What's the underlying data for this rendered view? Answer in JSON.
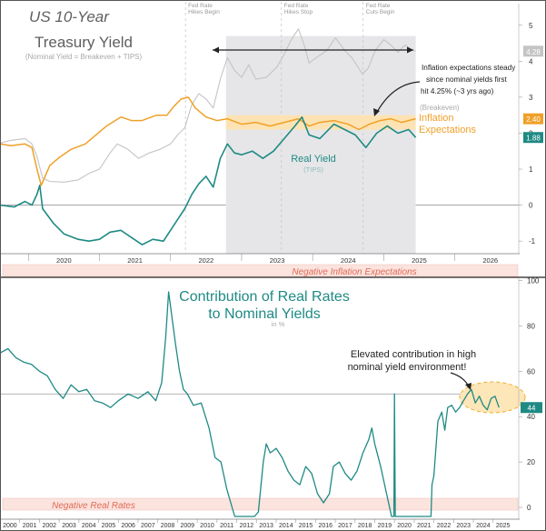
{
  "colors": {
    "nominal": "#c4c4c4",
    "nominal_band": "#dddddf",
    "breakeven": "#f0a028",
    "real": "#1f8a84",
    "contribution": "#1f8a84",
    "negative_band": "#fbe3de",
    "negative_text": "#e06a55",
    "ellipse_fill": "#fde6b8",
    "ellipse_stroke": "#f0b030",
    "axis_text": "#333333",
    "event_text": "#999999",
    "title_gray": "#5f5f5f"
  },
  "chart_data": [
    {
      "type": "line",
      "title": "US 10-Year Treasury Yield",
      "subtitle": "(Nominal Yield = Breakeven + TIPS)",
      "xlim": [
        2019.6,
        2026.9
      ],
      "ylim": [
        -1.35,
        5.5
      ],
      "x_ticks": [
        "2020",
        "2021",
        "2022",
        "2023",
        "2024",
        "2025",
        "2026"
      ],
      "y_ticks": [
        "5",
        "4",
        "3",
        "2",
        "1",
        "0",
        "-1"
      ],
      "events": [
        {
          "x": 2022.21,
          "lines": [
            "Fed Rate",
            "Hikes Begin"
          ]
        },
        {
          "x": 2023.56,
          "lines": [
            "Fed Rate",
            "Hikes Stop"
          ]
        },
        {
          "x": 2024.71,
          "lines": [
            "Fed Rate",
            "Cuts Begin"
          ]
        }
      ],
      "series": [
        {
          "name": "Nominal Yield",
          "last_label": "4.28",
          "points": [
            [
              2019.6,
              1.72
            ],
            [
              2019.75,
              1.8
            ],
            [
              2019.95,
              1.85
            ],
            [
              2020.05,
              1.7
            ],
            [
              2020.12,
              1.35
            ],
            [
              2020.2,
              0.75
            ],
            [
              2020.3,
              0.66
            ],
            [
              2020.5,
              0.64
            ],
            [
              2020.7,
              0.7
            ],
            [
              2020.85,
              0.88
            ],
            [
              2021.0,
              1.0
            ],
            [
              2021.15,
              1.45
            ],
            [
              2021.25,
              1.7
            ],
            [
              2021.4,
              1.55
            ],
            [
              2021.55,
              1.3
            ],
            [
              2021.7,
              1.45
            ],
            [
              2021.85,
              1.55
            ],
            [
              2022.0,
              1.7
            ],
            [
              2022.1,
              1.95
            ],
            [
              2022.2,
              2.15
            ],
            [
              2022.3,
              2.8
            ],
            [
              2022.4,
              3.1
            ],
            [
              2022.5,
              2.95
            ],
            [
              2022.6,
              2.7
            ],
            [
              2022.7,
              3.5
            ],
            [
              2022.8,
              4.1
            ],
            [
              2022.9,
              3.75
            ],
            [
              2023.0,
              3.55
            ],
            [
              2023.1,
              3.9
            ],
            [
              2023.2,
              3.5
            ],
            [
              2023.35,
              3.55
            ],
            [
              2023.5,
              3.85
            ],
            [
              2023.6,
              4.2
            ],
            [
              2023.7,
              4.6
            ],
            [
              2023.8,
              4.9
            ],
            [
              2023.88,
              4.45
            ],
            [
              2023.95,
              3.95
            ],
            [
              2024.05,
              4.1
            ],
            [
              2024.2,
              4.3
            ],
            [
              2024.32,
              4.65
            ],
            [
              2024.45,
              4.3
            ],
            [
              2024.55,
              4.1
            ],
            [
              2024.7,
              3.65
            ],
            [
              2024.78,
              3.8
            ],
            [
              2024.88,
              4.3
            ],
            [
              2025.0,
              4.6
            ],
            [
              2025.1,
              4.45
            ],
            [
              2025.2,
              4.25
            ],
            [
              2025.3,
              4.45
            ],
            [
              2025.42,
              4.3
            ],
            [
              2025.45,
              4.28
            ]
          ]
        },
        {
          "name": "Inflation Expectations",
          "label_lines": [
            "(Breakeven)",
            "Inflation",
            "Expectations"
          ],
          "last_label": "2.40",
          "points": [
            [
              2019.6,
              1.7
            ],
            [
              2019.75,
              1.65
            ],
            [
              2019.95,
              1.7
            ],
            [
              2020.05,
              1.6
            ],
            [
              2020.12,
              1.0
            ],
            [
              2020.18,
              0.55
            ],
            [
              2020.3,
              1.1
            ],
            [
              2020.45,
              1.35
            ],
            [
              2020.6,
              1.55
            ],
            [
              2020.8,
              1.7
            ],
            [
              2020.95,
              1.95
            ],
            [
              2021.1,
              2.2
            ],
            [
              2021.3,
              2.45
            ],
            [
              2021.45,
              2.35
            ],
            [
              2021.6,
              2.35
            ],
            [
              2021.8,
              2.5
            ],
            [
              2021.95,
              2.5
            ],
            [
              2022.05,
              2.75
            ],
            [
              2022.15,
              2.95
            ],
            [
              2022.25,
              3.0
            ],
            [
              2022.35,
              2.7
            ],
            [
              2022.5,
              2.45
            ],
            [
              2022.65,
              2.35
            ],
            [
              2022.8,
              2.4
            ],
            [
              2023.0,
              2.25
            ],
            [
              2023.2,
              2.3
            ],
            [
              2023.4,
              2.2
            ],
            [
              2023.6,
              2.3
            ],
            [
              2023.8,
              2.4
            ],
            [
              2023.95,
              2.2
            ],
            [
              2024.1,
              2.3
            ],
            [
              2024.3,
              2.35
            ],
            [
              2024.5,
              2.25
            ],
            [
              2024.65,
              2.1
            ],
            [
              2024.8,
              2.25
            ],
            [
              2024.95,
              2.35
            ],
            [
              2025.1,
              2.4
            ],
            [
              2025.25,
              2.3
            ],
            [
              2025.45,
              2.4
            ]
          ]
        },
        {
          "name": "Real Yield",
          "sublabel": "(TIPS)",
          "last_label": "1.88",
          "points": [
            [
              2019.6,
              0.0
            ],
            [
              2019.8,
              -0.05
            ],
            [
              2019.95,
              0.1
            ],
            [
              2020.05,
              0.0
            ],
            [
              2020.12,
              0.3
            ],
            [
              2020.16,
              0.55
            ],
            [
              2020.2,
              -0.1
            ],
            [
              2020.35,
              -0.5
            ],
            [
              2020.5,
              -0.8
            ],
            [
              2020.7,
              -0.95
            ],
            [
              2020.85,
              -1.0
            ],
            [
              2021.0,
              -0.95
            ],
            [
              2021.15,
              -0.75
            ],
            [
              2021.3,
              -0.7
            ],
            [
              2021.45,
              -0.9
            ],
            [
              2021.6,
              -1.1
            ],
            [
              2021.75,
              -0.95
            ],
            [
              2021.9,
              -1.0
            ],
            [
              2022.0,
              -0.7
            ],
            [
              2022.1,
              -0.4
            ],
            [
              2022.2,
              -0.1
            ],
            [
              2022.3,
              0.3
            ],
            [
              2022.4,
              0.6
            ],
            [
              2022.5,
              0.8
            ],
            [
              2022.6,
              0.5
            ],
            [
              2022.7,
              1.3
            ],
            [
              2022.8,
              1.7
            ],
            [
              2022.9,
              1.45
            ],
            [
              2023.0,
              1.4
            ],
            [
              2023.15,
              1.5
            ],
            [
              2023.3,
              1.3
            ],
            [
              2023.45,
              1.5
            ],
            [
              2023.6,
              1.85
            ],
            [
              2023.75,
              2.2
            ],
            [
              2023.85,
              2.45
            ],
            [
              2023.95,
              1.95
            ],
            [
              2024.1,
              1.85
            ],
            [
              2024.3,
              2.25
            ],
            [
              2024.45,
              2.1
            ],
            [
              2024.6,
              1.95
            ],
            [
              2024.75,
              1.6
            ],
            [
              2024.9,
              2.0
            ],
            [
              2025.05,
              2.2
            ],
            [
              2025.2,
              2.0
            ],
            [
              2025.35,
              2.1
            ],
            [
              2025.45,
              1.88
            ]
          ]
        }
      ],
      "annotations": {
        "inflation_note": [
          "Inflation expectations steady",
          "since nominal yields first",
          "hit 4.25% (~3 yrs ago)"
        ]
      }
    },
    {
      "type": "line",
      "title_lines": [
        "Contribution of Real Rates",
        "to Nominal Yields"
      ],
      "subtitle": "in %",
      "xlim": [
        2000.0,
        2026.3
      ],
      "ylim": [
        -4,
        101
      ],
      "x_ticks": [
        "2000",
        "2001",
        "2002",
        "2003",
        "2004",
        "2005",
        "2006",
        "2007",
        "2008",
        "2009",
        "2010",
        "2011",
        "2012",
        "2013",
        "2014",
        "2015",
        "2016",
        "2017",
        "2018",
        "2019",
        "2020",
        "2021",
        "2022",
        "2023",
        "2024",
        "2025"
      ],
      "y_ticks": [
        "100",
        "80",
        "60",
        "40",
        "20",
        "0"
      ],
      "reference_line": 50,
      "last_label": "44",
      "series": [
        {
          "name": "Contribution of Real Rates",
          "points": [
            [
              2000.0,
              68
            ],
            [
              2000.4,
              70
            ],
            [
              2000.8,
              66
            ],
            [
              2001.2,
              64
            ],
            [
              2001.6,
              63
            ],
            [
              2002.0,
              60
            ],
            [
              2002.4,
              58
            ],
            [
              2002.8,
              52
            ],
            [
              2003.2,
              48
            ],
            [
              2003.6,
              54
            ],
            [
              2004.0,
              51
            ],
            [
              2004.4,
              52
            ],
            [
              2004.8,
              47
            ],
            [
              2005.2,
              46
            ],
            [
              2005.6,
              44
            ],
            [
              2006.0,
              47
            ],
            [
              2006.5,
              50
            ],
            [
              2007.0,
              48
            ],
            [
              2007.5,
              51
            ],
            [
              2007.9,
              47
            ],
            [
              2008.2,
              55
            ],
            [
              2008.4,
              75
            ],
            [
              2008.55,
              95
            ],
            [
              2008.7,
              85
            ],
            [
              2008.9,
              72
            ],
            [
              2009.1,
              60
            ],
            [
              2009.3,
              52
            ],
            [
              2009.5,
              50
            ],
            [
              2009.8,
              45
            ],
            [
              2010.2,
              46
            ],
            [
              2010.6,
              35
            ],
            [
              2010.9,
              22
            ],
            [
              2011.2,
              20
            ],
            [
              2011.5,
              8
            ],
            [
              2011.7,
              2
            ],
            [
              2011.9,
              -4
            ],
            [
              2012.3,
              -4
            ],
            [
              2012.9,
              -4
            ],
            [
              2013.1,
              -2
            ],
            [
              2013.35,
              20
            ],
            [
              2013.5,
              28
            ],
            [
              2013.7,
              24
            ],
            [
              2014.0,
              26
            ],
            [
              2014.3,
              22
            ],
            [
              2014.6,
              16
            ],
            [
              2014.9,
              12
            ],
            [
              2015.2,
              10
            ],
            [
              2015.5,
              18
            ],
            [
              2015.8,
              15
            ],
            [
              2016.1,
              6
            ],
            [
              2016.4,
              2
            ],
            [
              2016.7,
              6
            ],
            [
              2016.9,
              18
            ],
            [
              2017.2,
              20
            ],
            [
              2017.5,
              15
            ],
            [
              2017.8,
              12
            ],
            [
              2018.1,
              16
            ],
            [
              2018.4,
              24
            ],
            [
              2018.7,
              30
            ],
            [
              2018.85,
              35
            ],
            [
              2019.0,
              28
            ],
            [
              2019.3,
              18
            ],
            [
              2019.6,
              6
            ],
            [
              2019.85,
              -4
            ],
            [
              2019.97,
              -4
            ],
            [
              2020.0,
              50
            ],
            [
              2020.04,
              -4
            ],
            [
              2021.85,
              -4
            ],
            [
              2021.9,
              10
            ],
            [
              2022.0,
              14
            ],
            [
              2022.2,
              38
            ],
            [
              2022.4,
              42
            ],
            [
              2022.55,
              34
            ],
            [
              2022.7,
              44
            ],
            [
              2022.9,
              45
            ],
            [
              2023.1,
              42
            ],
            [
              2023.3,
              44
            ],
            [
              2023.5,
              47
            ],
            [
              2023.7,
              50
            ],
            [
              2023.9,
              52
            ],
            [
              2024.1,
              46
            ],
            [
              2024.3,
              49
            ],
            [
              2024.5,
              45
            ],
            [
              2024.7,
              43
            ],
            [
              2024.9,
              48
            ],
            [
              2025.1,
              49
            ],
            [
              2025.3,
              44
            ]
          ]
        }
      ],
      "annotations": {
        "contribution_note": [
          "Elevated contribution in high",
          "nominal yield environment!"
        ]
      }
    }
  ],
  "bands": {
    "negative_inflation_label": "Negative Inflation Expectations",
    "negative_real_label": "Negative Real Rates"
  }
}
